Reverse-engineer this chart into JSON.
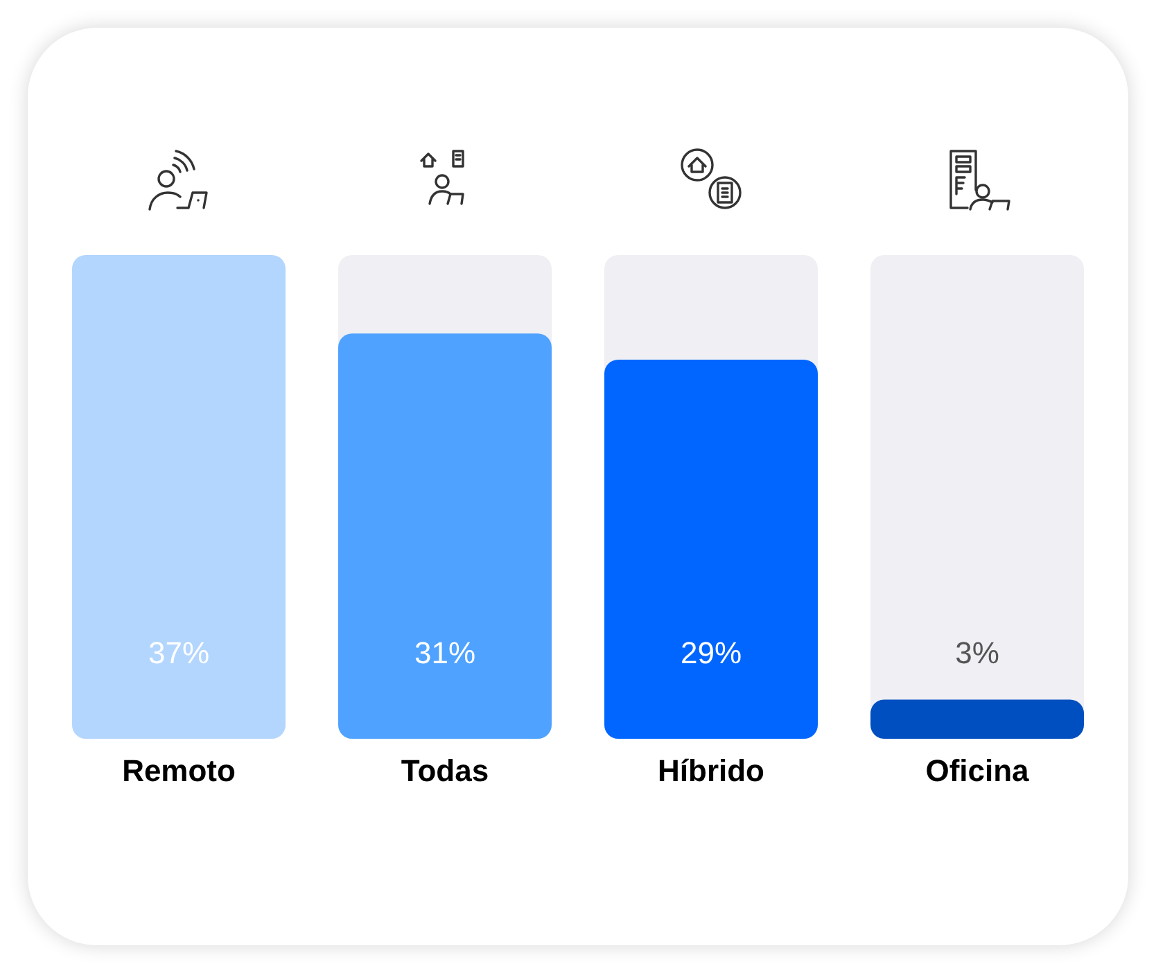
{
  "chart_data": {
    "type": "bar",
    "categories": [
      "Remoto",
      "Todas",
      "Híbrido",
      "Oficina"
    ],
    "values": [
      37,
      31,
      29,
      3
    ],
    "colors": [
      "#b3d6fe",
      "#4fa2ff",
      "#0066ff",
      "#004fc0"
    ],
    "value_labels": [
      "37%",
      "31%",
      "29%",
      "3%"
    ],
    "tick_labels": "x"
  }
}
